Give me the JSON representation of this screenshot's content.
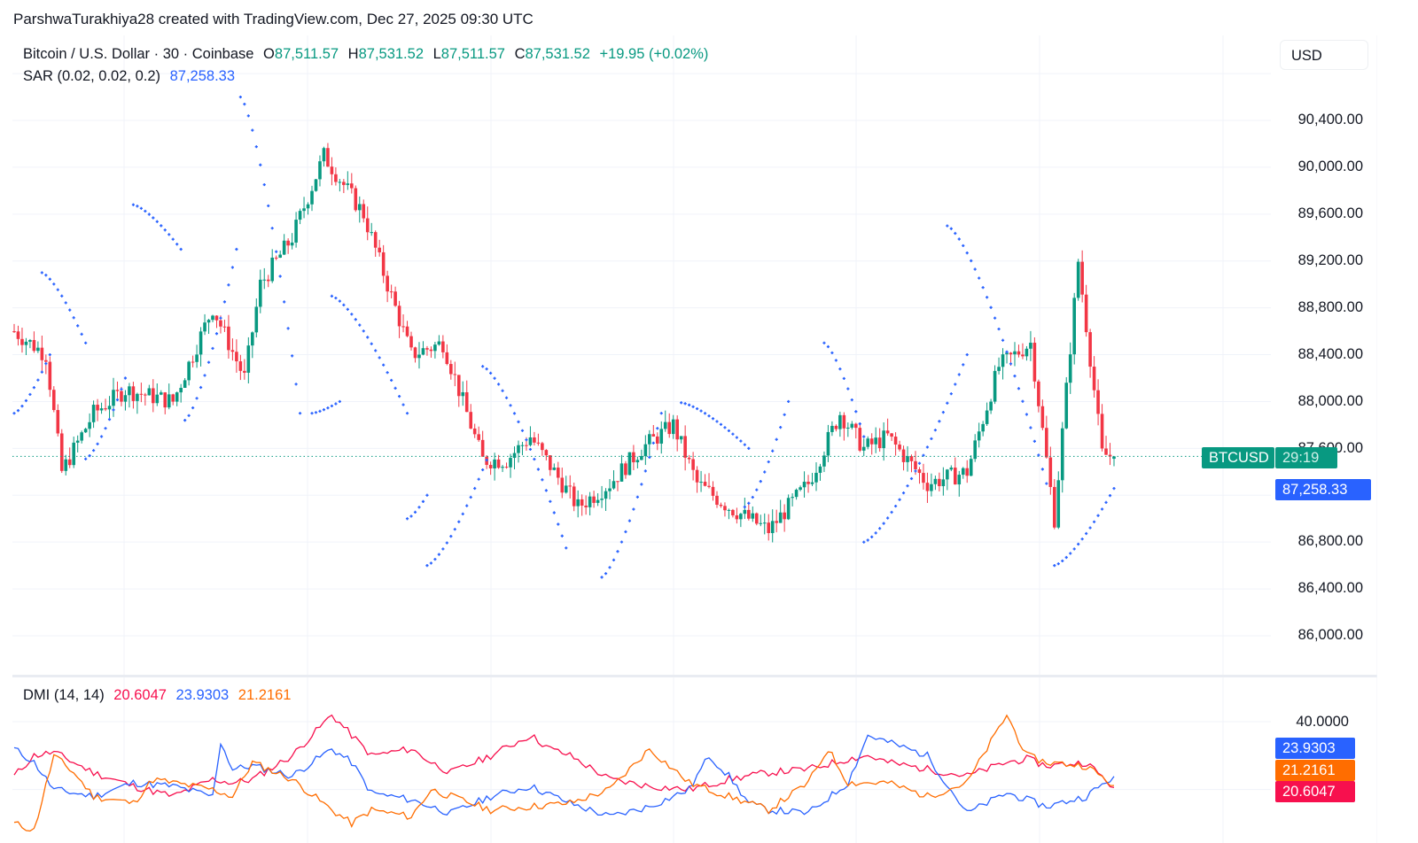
{
  "credit": "ParshwaTurakhiya28 created with TradingView.com, Dec 27, 2025 09:30 UTC",
  "symbol": {
    "title": "Bitcoin / U.S. Dollar · 30 · Coinbase",
    "o_label": "O",
    "o": "87,511.57",
    "h_label": "H",
    "h": "87,531.52",
    "l_label": "L",
    "l": "87,511.57",
    "c_label": "C",
    "c": "87,531.52",
    "change": "+19.95 (+0.02%)"
  },
  "sar": {
    "label": "SAR (0.02, 0.02, 0.2)",
    "value": "87,258.33"
  },
  "dmi": {
    "label": "DMI (14, 14)",
    "minus_di": "20.6047",
    "plus_di": "23.9303",
    "adx": "21.2161"
  },
  "currency_button": "USD",
  "price_axis": [
    "90,400.00",
    "90,000.00",
    "89,600.00",
    "89,200.00",
    "88,800.00",
    "88,400.00",
    "88,000.00",
    "87,600.00",
    "86,800.00",
    "86,400.00",
    "86,000.00"
  ],
  "dmi_axis": [
    "40.0000"
  ],
  "tags": {
    "symbol": "BTCUSD",
    "countdown": "29:19",
    "sar_price": "87,258.33",
    "plus_di": "23.9303",
    "adx": "21.2161",
    "minus_di": "20.6047"
  },
  "colors": {
    "up": "#089981",
    "down": "#f23645",
    "sar": "#2962ff",
    "plus_di": "#2962ff",
    "minus_di": "#f7104e",
    "adx": "#ff6d00",
    "grid": "#f0f3fa"
  },
  "chart_data": [
    {
      "type": "candlestick",
      "title": "Bitcoin / U.S. Dollar · 30 · Coinbase",
      "timeframe": "30m",
      "ylabel": "USD",
      "ylim": [
        85800,
        90700
      ],
      "last": {
        "open": 87511.57,
        "high": 87531.52,
        "low": 87511.57,
        "close": 87531.52,
        "change": 19.95,
        "change_pct": 0.02
      },
      "close_path": {
        "x": [
          0,
          8,
          12,
          20,
          28,
          40,
          50,
          58,
          62,
          70,
          78,
          88,
          100,
          108,
          118,
          124,
          130,
          136,
          142,
          150,
          158,
          166,
          172,
          180,
          190,
          200,
          208,
          214,
          220,
          230,
          240,
          248,
          256,
          262,
          268,
          274,
          277
        ],
        "y": [
          88600,
          88400,
          87400,
          87900,
          88100,
          88000,
          88800,
          88200,
          89000,
          89400,
          90100,
          89600,
          88400,
          88500,
          87500,
          87500,
          87700,
          87400,
          87100,
          87300,
          87600,
          87800,
          87300,
          87100,
          86900,
          87300,
          87900,
          87600,
          87700,
          87300,
          87400,
          88300,
          88500,
          87000,
          89200,
          87550,
          87531
        ]
      },
      "candle_count": 278,
      "sar": {
        "label": "Parabolic SAR (0.02, 0.02, 0.2)",
        "last": 87258.33,
        "segments": [
          {
            "from": 0,
            "to": 9,
            "start": 87900,
            "end": 88400,
            "side": "below"
          },
          {
            "from": 7,
            "to": 18,
            "start": 89100,
            "end": 88500,
            "side": "above"
          },
          {
            "from": 18,
            "to": 28,
            "start": 87510,
            "end": 88200,
            "side": "below"
          },
          {
            "from": 30,
            "to": 42,
            "start": 89680,
            "end": 89300,
            "side": "above"
          },
          {
            "from": 43,
            "to": 56,
            "start": 87840,
            "end": 89300,
            "side": "below"
          },
          {
            "from": 57,
            "to": 72,
            "start": 90600,
            "end": 87900,
            "side": "above"
          },
          {
            "from": 75,
            "to": 82,
            "start": 87900,
            "end": 88000,
            "side": "below"
          },
          {
            "from": 80,
            "to": 99,
            "start": 88900,
            "end": 87900,
            "side": "above"
          },
          {
            "from": 99,
            "to": 104,
            "start": 87000,
            "end": 87200,
            "side": "below"
          },
          {
            "from": 104,
            "to": 119,
            "start": 86600,
            "end": 87500,
            "side": "below"
          },
          {
            "from": 118,
            "to": 139,
            "start": 88300,
            "end": 86750,
            "side": "above"
          },
          {
            "from": 148,
            "to": 163,
            "start": 86500,
            "end": 87900,
            "side": "below"
          },
          {
            "from": 168,
            "to": 185,
            "start": 87990,
            "end": 87600,
            "side": "above"
          },
          {
            "from": 184,
            "to": 195,
            "start": 87100,
            "end": 88000,
            "side": "below"
          },
          {
            "from": 204,
            "to": 214,
            "start": 88500,
            "end": 87700,
            "side": "above"
          },
          {
            "from": 214,
            "to": 240,
            "start": 86800,
            "end": 88400,
            "side": "below"
          },
          {
            "from": 235,
            "to": 260,
            "start": 89500,
            "end": 87300,
            "side": "above"
          },
          {
            "from": 262,
            "to": 277,
            "start": 86600,
            "end": 87258,
            "side": "below"
          }
        ]
      }
    },
    {
      "type": "line",
      "title": "DMI (14, 14)",
      "ylim": [
        5,
        45
      ],
      "ticks": [
        40
      ],
      "series": [
        {
          "name": "-DI",
          "color": "#f7104e",
          "last": 20.6047,
          "x": [
            0,
            5,
            10,
            20,
            30,
            40,
            50,
            55,
            60,
            70,
            80,
            90,
            100,
            105,
            110,
            120,
            130,
            135,
            140,
            150,
            160,
            170,
            180,
            190,
            200,
            210,
            215,
            220,
            230,
            240,
            250,
            255,
            260,
            270,
            277
          ],
          "y": [
            24,
            30,
            31,
            25,
            21,
            18,
            23,
            22,
            23,
            30,
            42,
            30,
            32,
            28,
            25,
            30,
            36,
            32,
            30,
            23,
            21,
            20,
            23,
            25,
            26,
            29,
            30,
            28,
            26,
            24,
            28,
            29,
            27,
            28,
            20.6
          ]
        },
        {
          "name": "+DI",
          "color": "#2962ff",
          "last": 23.9303,
          "x": [
            0,
            5,
            10,
            20,
            30,
            40,
            50,
            52,
            55,
            60,
            70,
            80,
            85,
            90,
            100,
            110,
            120,
            130,
            140,
            150,
            160,
            170,
            175,
            180,
            185,
            190,
            200,
            210,
            215,
            220,
            230,
            240,
            250,
            255,
            260,
            270,
            277
          ],
          "y": [
            32,
            28,
            20,
            18,
            22,
            21,
            18,
            34,
            26,
            27,
            24,
            32,
            28,
            19,
            17,
            13,
            18,
            21,
            16,
            12,
            15,
            20,
            30,
            24,
            16,
            14,
            13,
            22,
            36,
            34,
            30,
            13,
            19,
            17,
            15,
            18,
            23.9
          ]
        },
        {
          "name": "ADX",
          "color": "#ff6d00",
          "last": 21.2161,
          "x": [
            0,
            5,
            10,
            15,
            20,
            30,
            35,
            40,
            50,
            55,
            60,
            70,
            80,
            85,
            90,
            100,
            105,
            110,
            120,
            130,
            140,
            150,
            160,
            170,
            180,
            190,
            200,
            205,
            210,
            220,
            230,
            240,
            250,
            255,
            260,
            270,
            277
          ],
          "y": [
            10,
            8,
            30,
            25,
            18,
            16,
            23,
            22,
            20,
            18,
            28,
            23,
            14,
            10,
            14,
            12,
            20,
            18,
            14,
            15,
            16,
            20,
            32,
            22,
            18,
            14,
            22,
            32,
            22,
            22,
            18,
            22,
            42,
            30,
            28,
            27,
            21.2
          ]
        }
      ]
    }
  ]
}
